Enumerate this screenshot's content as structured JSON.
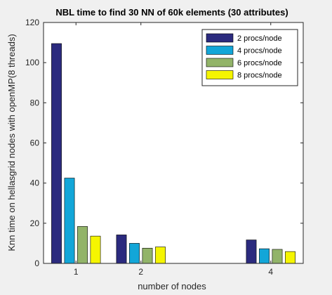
{
  "chart_data": {
    "type": "bar",
    "title": "NBL time to find 30 NN of 60k elements (30 attributes)",
    "xlabel": "number of nodes",
    "ylabel": "Knn time on hellasgrid nodes with openMP(8 threads)",
    "x": [
      1,
      2,
      4
    ],
    "xticks": [
      1,
      2,
      4
    ],
    "xlim": [
      0.5,
      4.5
    ],
    "yticks": [
      0,
      20,
      40,
      60,
      80,
      100,
      120
    ],
    "ylim": [
      0,
      120
    ],
    "grid": false,
    "legend_position": "top-right",
    "series": [
      {
        "name": "2 procs/node",
        "color": "#2b2a7e",
        "values": [
          109.5,
          14.2,
          11.7
        ]
      },
      {
        "name": "4 procs/node",
        "color": "#12a6d8",
        "values": [
          42.5,
          10.0,
          7.3
        ]
      },
      {
        "name": "6 procs/node",
        "color": "#92b469",
        "values": [
          18.4,
          7.6,
          7.0
        ]
      },
      {
        "name": "8 procs/node",
        "color": "#f5f500",
        "values": [
          13.6,
          8.2,
          5.9
        ]
      }
    ]
  }
}
